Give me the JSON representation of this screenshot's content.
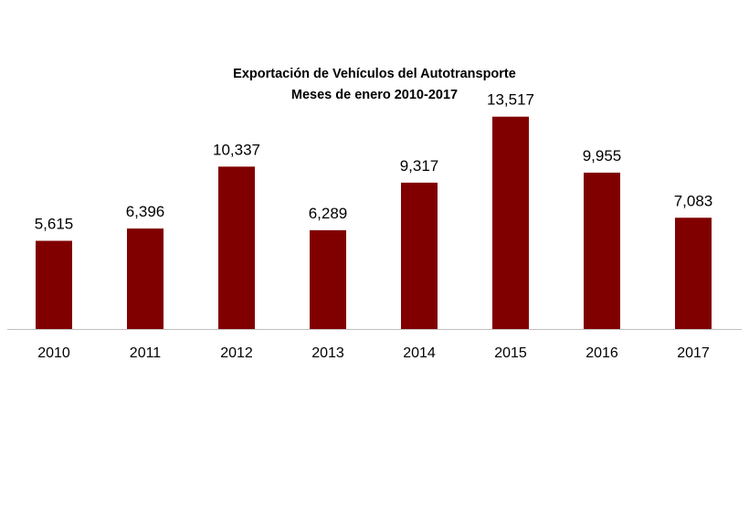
{
  "chart_data": {
    "type": "bar",
    "title": "Exportación de Vehículos del Autotransporte",
    "subtitle": "Meses de enero 2010-2017",
    "categories": [
      "2010",
      "2011",
      "2012",
      "2013",
      "2014",
      "2015",
      "2016",
      "2017"
    ],
    "values": [
      5615,
      6396,
      10337,
      6289,
      9317,
      13517,
      9955,
      7083
    ],
    "data_labels": [
      "5,615",
      "6,396",
      "10,337",
      "6,289",
      "9,317",
      "13,517",
      "9,955",
      "7,083"
    ],
    "ylim": [
      0,
      16000
    ],
    "grid": false,
    "legend": "none",
    "bar_color": "#800000",
    "axis_color": "#bfbfbf"
  }
}
